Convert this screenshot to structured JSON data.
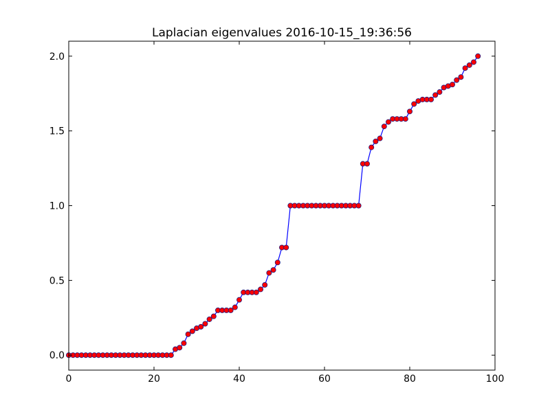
{
  "chart_data": {
    "type": "line",
    "title": "Laplacian eigenvalues 2016-10-15_19:36:56",
    "xlabel": "",
    "ylabel": "",
    "xlim": [
      0,
      100
    ],
    "ylim": [
      -0.1,
      2.1
    ],
    "xticks": [
      0,
      20,
      40,
      60,
      80,
      100
    ],
    "xtick_labels": [
      "0",
      "20",
      "40",
      "60",
      "80",
      "100"
    ],
    "yticks": [
      0.0,
      0.5,
      1.0,
      1.5,
      2.0
    ],
    "ytick_labels": [
      "0.0",
      "0.5",
      "1.0",
      "1.5",
      "2.0"
    ],
    "grid": false,
    "line_color": "#0000ff",
    "marker_fill": "#ff0000",
    "marker_edge": "#1a1a80",
    "series": [
      {
        "x": [
          0,
          1,
          2,
          3,
          4,
          5,
          6,
          7,
          8,
          9,
          10,
          11,
          12,
          13,
          14,
          15,
          16,
          17,
          18,
          19,
          20,
          21,
          22,
          23,
          24,
          25,
          26,
          27,
          28,
          29,
          30,
          31,
          32,
          33,
          34,
          35,
          36,
          37,
          38,
          39,
          40,
          41,
          42,
          43,
          44,
          45,
          46,
          47,
          48,
          49,
          50,
          51,
          52,
          53,
          54,
          55,
          56,
          57,
          58,
          59,
          60,
          61,
          62,
          63,
          64,
          65,
          66,
          67,
          68,
          69,
          70,
          71,
          72,
          73,
          74,
          75,
          76,
          77,
          78,
          79,
          80,
          81,
          82,
          83,
          84,
          85,
          86,
          87,
          88,
          89,
          90,
          91,
          92,
          93,
          94,
          95,
          96
        ],
        "values": [
          0,
          0,
          0,
          0,
          0,
          0,
          0,
          0,
          0,
          0,
          0,
          0,
          0,
          0,
          0,
          0,
          0,
          0,
          0,
          0,
          0,
          0,
          0,
          0,
          0,
          0.04,
          0.05,
          0.08,
          0.14,
          0.16,
          0.18,
          0.19,
          0.21,
          0.24,
          0.26,
          0.3,
          0.3,
          0.3,
          0.3,
          0.32,
          0.37,
          0.42,
          0.42,
          0.42,
          0.42,
          0.44,
          0.47,
          0.55,
          0.57,
          0.62,
          0.72,
          0.72,
          1.0,
          1.0,
          1.0,
          1.0,
          1.0,
          1.0,
          1.0,
          1.0,
          1.0,
          1.0,
          1.0,
          1.0,
          1.0,
          1.0,
          1.0,
          1.0,
          1.0,
          1.28,
          1.28,
          1.39,
          1.43,
          1.45,
          1.53,
          1.56,
          1.58,
          1.58,
          1.58,
          1.58,
          1.63,
          1.68,
          1.7,
          1.71,
          1.71,
          1.71,
          1.74,
          1.76,
          1.79,
          1.8,
          1.81,
          1.84,
          1.86,
          1.92,
          1.94,
          1.96,
          2.0
        ]
      }
    ]
  }
}
